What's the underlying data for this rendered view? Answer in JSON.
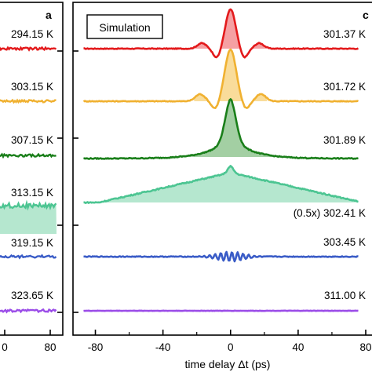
{
  "chart_data": [
    {
      "type": "line",
      "panel_label": "a",
      "x_tick_labels": [
        "0",
        "80"
      ],
      "series": [
        {
          "name": "294.15 K",
          "color": "#e31a1c"
        },
        {
          "name": "303.15 K",
          "color": "#f0b131"
        },
        {
          "name": "307.15 K",
          "color": "#1a7f1a"
        },
        {
          "name": "313.15 K",
          "color": "#4cc592"
        },
        {
          "name": "319.15 K",
          "color": "#3a5cc7"
        },
        {
          "name": "323.65 K",
          "color": "#9b4de8"
        }
      ]
    },
    {
      "type": "area",
      "panel_label": "c",
      "legend_box": "Simulation",
      "xlabel": "time delay Δt (ps)",
      "xlim": [
        -90,
        80
      ],
      "x_ticks": [
        -80,
        -40,
        0,
        40,
        80
      ],
      "x_tick_labels": [
        "-80",
        "-40",
        "0",
        "40",
        "80"
      ],
      "grid": false,
      "series": [
        {
          "name": "301.37 K",
          "color": "#e31a1c",
          "fill": "#f5a0a3",
          "shape": "narrow_oscillating_peak",
          "peak_width_ps": 5,
          "side_lobes_ps": 18
        },
        {
          "name": "301.72 K",
          "color": "#f0b131",
          "fill": "#f9dc9a",
          "shape": "peak_with_side_lobes",
          "peak_width_ps": 6,
          "side_lobes_ps": 18
        },
        {
          "name": "301.89 K",
          "color": "#1a7f1a",
          "fill": "#a3cfa3",
          "shape": "peak_on_broad_base",
          "peak_width_ps": 6,
          "base_width_ps": 28
        },
        {
          "name": "302.41 K",
          "scale_note": "(0.5x)",
          "color": "#4cc592",
          "fill": "#b5e7cf",
          "shape": "broad_triangular",
          "base_width_ps": 75
        },
        {
          "name": "303.45 K",
          "color": "#3a5cc7",
          "fill": "#a8b8ea",
          "shape": "weak_oscillation"
        },
        {
          "name": "311.00 K",
          "color": "#9b4de8",
          "fill": "#d4b8f3",
          "shape": "flat"
        }
      ]
    }
  ]
}
